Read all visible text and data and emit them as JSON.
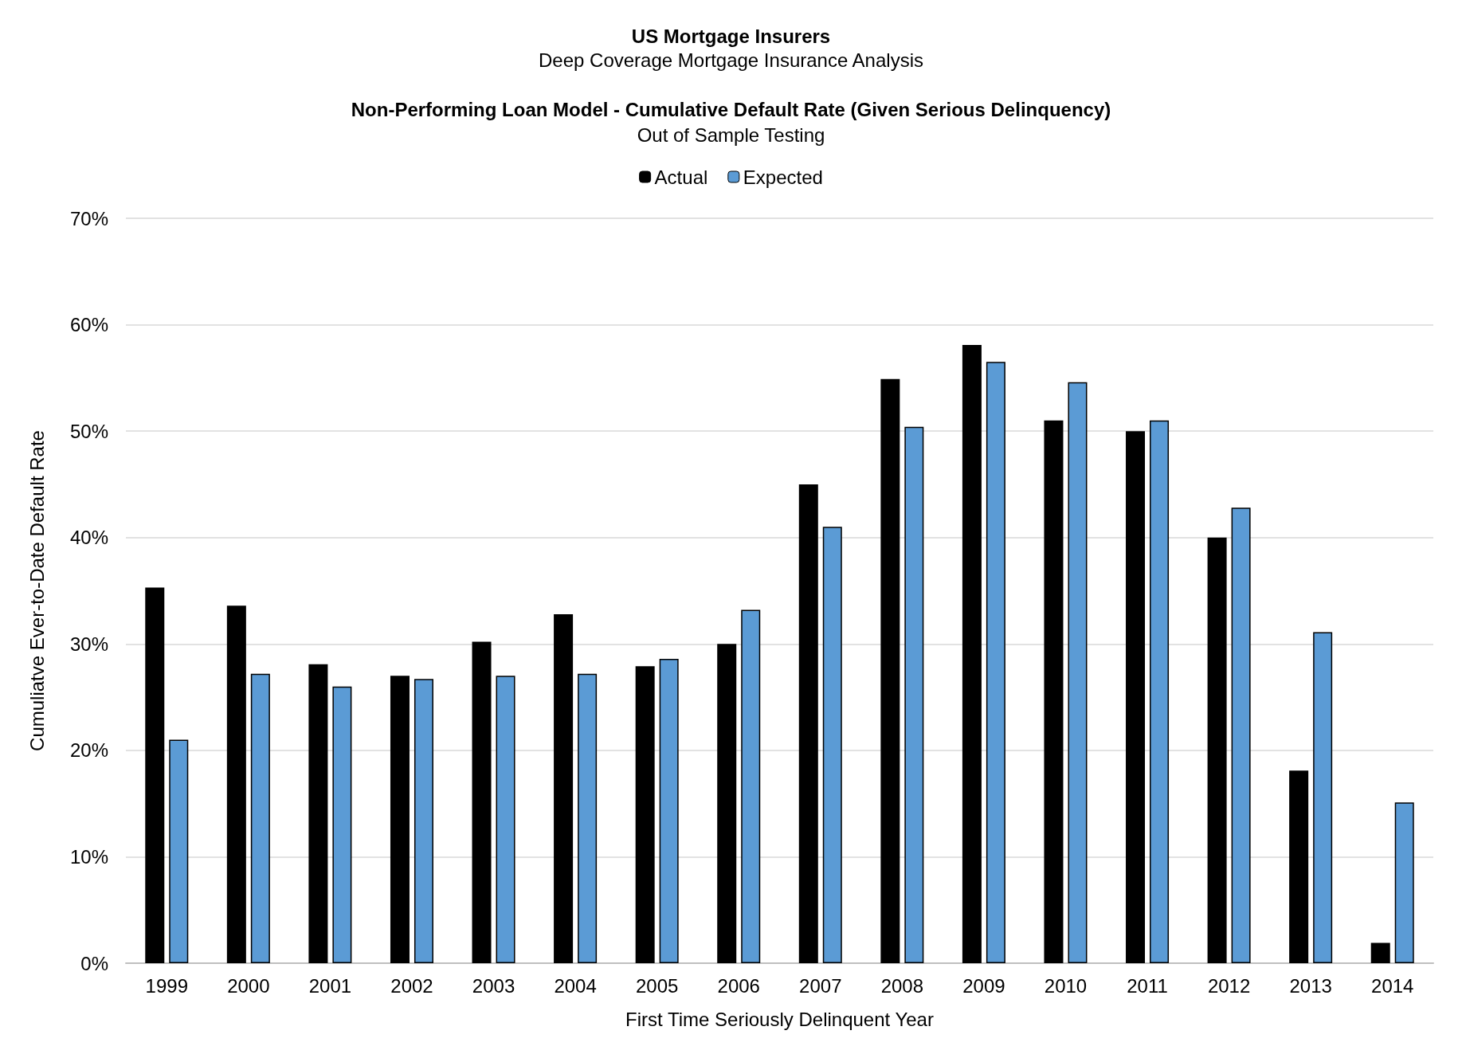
{
  "chart_data": {
    "type": "bar",
    "title": "US Mortgage Insurers",
    "subtitle": "Deep Coverage Mortgage Insurance Analysis",
    "annotations": [
      "Non-Performing Loan Model - Cumulative Default Rate (Given Serious Delinquency)",
      "Out of Sample Testing"
    ],
    "xlabel": "First Time Seriously Delinquent Year",
    "ylabel": "Cumuliatve Ever-to-Date Default Rate",
    "categories": [
      "1999",
      "2000",
      "2001",
      "2002",
      "2003",
      "2004",
      "2005",
      "2006",
      "2007",
      "2008",
      "2009",
      "2010",
      "2011",
      "2012",
      "2013",
      "2014"
    ],
    "series": [
      {
        "name": "Actual",
        "color": "#000000",
        "values": [
          35.3,
          33.6,
          28.1,
          27.0,
          30.2,
          32.8,
          27.9,
          30.0,
          45.0,
          54.9,
          58.1,
          51.0,
          50.0,
          40.0,
          18.1,
          1.9
        ]
      },
      {
        "name": "Expected",
        "color": "#5b9bd5",
        "values": [
          21.0,
          27.2,
          26.0,
          26.7,
          27.0,
          27.2,
          28.6,
          33.2,
          41.0,
          50.4,
          56.5,
          54.6,
          51.0,
          42.8,
          31.1,
          15.1
        ]
      }
    ],
    "ylim": [
      0,
      70
    ],
    "yticks": [
      {
        "value": 0,
        "label": "0%"
      },
      {
        "value": 10,
        "label": "10%"
      },
      {
        "value": 20,
        "label": "20%"
      },
      {
        "value": 30,
        "label": "30%"
      },
      {
        "value": 40,
        "label": "40%"
      },
      {
        "value": 50,
        "label": "50%"
      },
      {
        "value": 60,
        "label": "60%"
      },
      {
        "value": 70,
        "label": "70%"
      }
    ],
    "grid": "y",
    "legend": "top"
  }
}
